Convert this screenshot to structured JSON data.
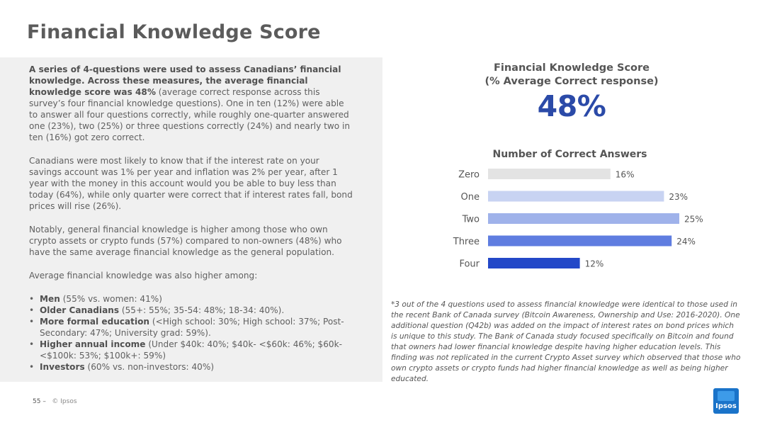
{
  "title": "Financial Knowledge Score",
  "left": {
    "p1_bold": "A series of 4-questions were used to assess Canadians’ financial knowledge.  Across these measures, the average financial knowledge score was 48%",
    "p1_rest": " (average correct response across this survey’s four financial knowledge questions).  One in ten (12%) were able to answer all four questions correctly, while roughly one-quarter answered one (23%), two (25%) or three questions correctly (24%) and nearly two in ten (16%) got zero correct.",
    "p2": "Canadians were most likely to know that if the interest rate on your savings account was 1% per year and inflation was 2% per year, after 1 year with the money in this account would you be able to buy less than today (64%), while only quarter were correct that if interest rates fall, bond prices will rise (26%).",
    "p3": "Notably, general financial knowledge is higher among those who own crypto assets or crypto funds (57%) compared to non-owners (48%) who have the same average financial knowledge as the general population.",
    "p4_intro": "Average financial knowledge was also higher among:",
    "bullets": [
      {
        "bold": "Men",
        "rest": " (55% vs. women: 41%)"
      },
      {
        "bold": "Older Canadians",
        "rest": " (55+: 55%; 35-54: 48%; 18-34: 40%)."
      },
      {
        "bold": "More formal education",
        "rest": " (<High school: 30%; High school: 37%; Post-Secondary: 47%; University grad: 59%)."
      },
      {
        "bold": "Higher annual income",
        "rest": " (Under $40k: 40%; $40k- <$60k: 46%; $60k-<$100k: 53%; $100k+: 59%)"
      },
      {
        "bold": "Investors",
        "rest": " (60% vs. non-investors: 40%)"
      }
    ]
  },
  "score": {
    "title_line1": "Financial Knowledge Score",
    "title_line2": "(% Average Correct response)",
    "value": "48%"
  },
  "chart_data": {
    "type": "bar",
    "orientation": "horizontal",
    "title": "Number of Correct Answers",
    "categories": [
      "Zero",
      "One",
      "Two",
      "Three",
      "Four"
    ],
    "values": [
      16,
      23,
      25,
      24,
      12
    ],
    "value_labels": [
      "16%",
      "23%",
      "25%",
      "24%",
      "12%"
    ],
    "colors": [
      "#e3e3e3",
      "#c8d3f2",
      "#9fb2ea",
      "#5f7de0",
      "#2348c8"
    ],
    "xlim": [
      0,
      25
    ],
    "grid": false,
    "legend": "none"
  },
  "footnote": "*3 out of the 4 questions used to assess financial knowledge were identical to those used in the recent Bank of Canada survey (Bitcoin Awareness, Ownership and Use: 2016-2020).  One additional question (Q42b) was added on the impact of interest rates on bond prices which is unique to this study.  The Bank of Canada study focused specifically on Bitcoin and found that owners had lower financial knowledge despite having higher education levels. This finding was not replicated in the current Crypto Asset survey which observed that those who own crypto assets or crypto funds had higher financial knowledge as well as being higher educated.",
  "footer": {
    "page": "55 –",
    "copyright": "© Ipsos"
  },
  "logo_text": "Ipsos"
}
